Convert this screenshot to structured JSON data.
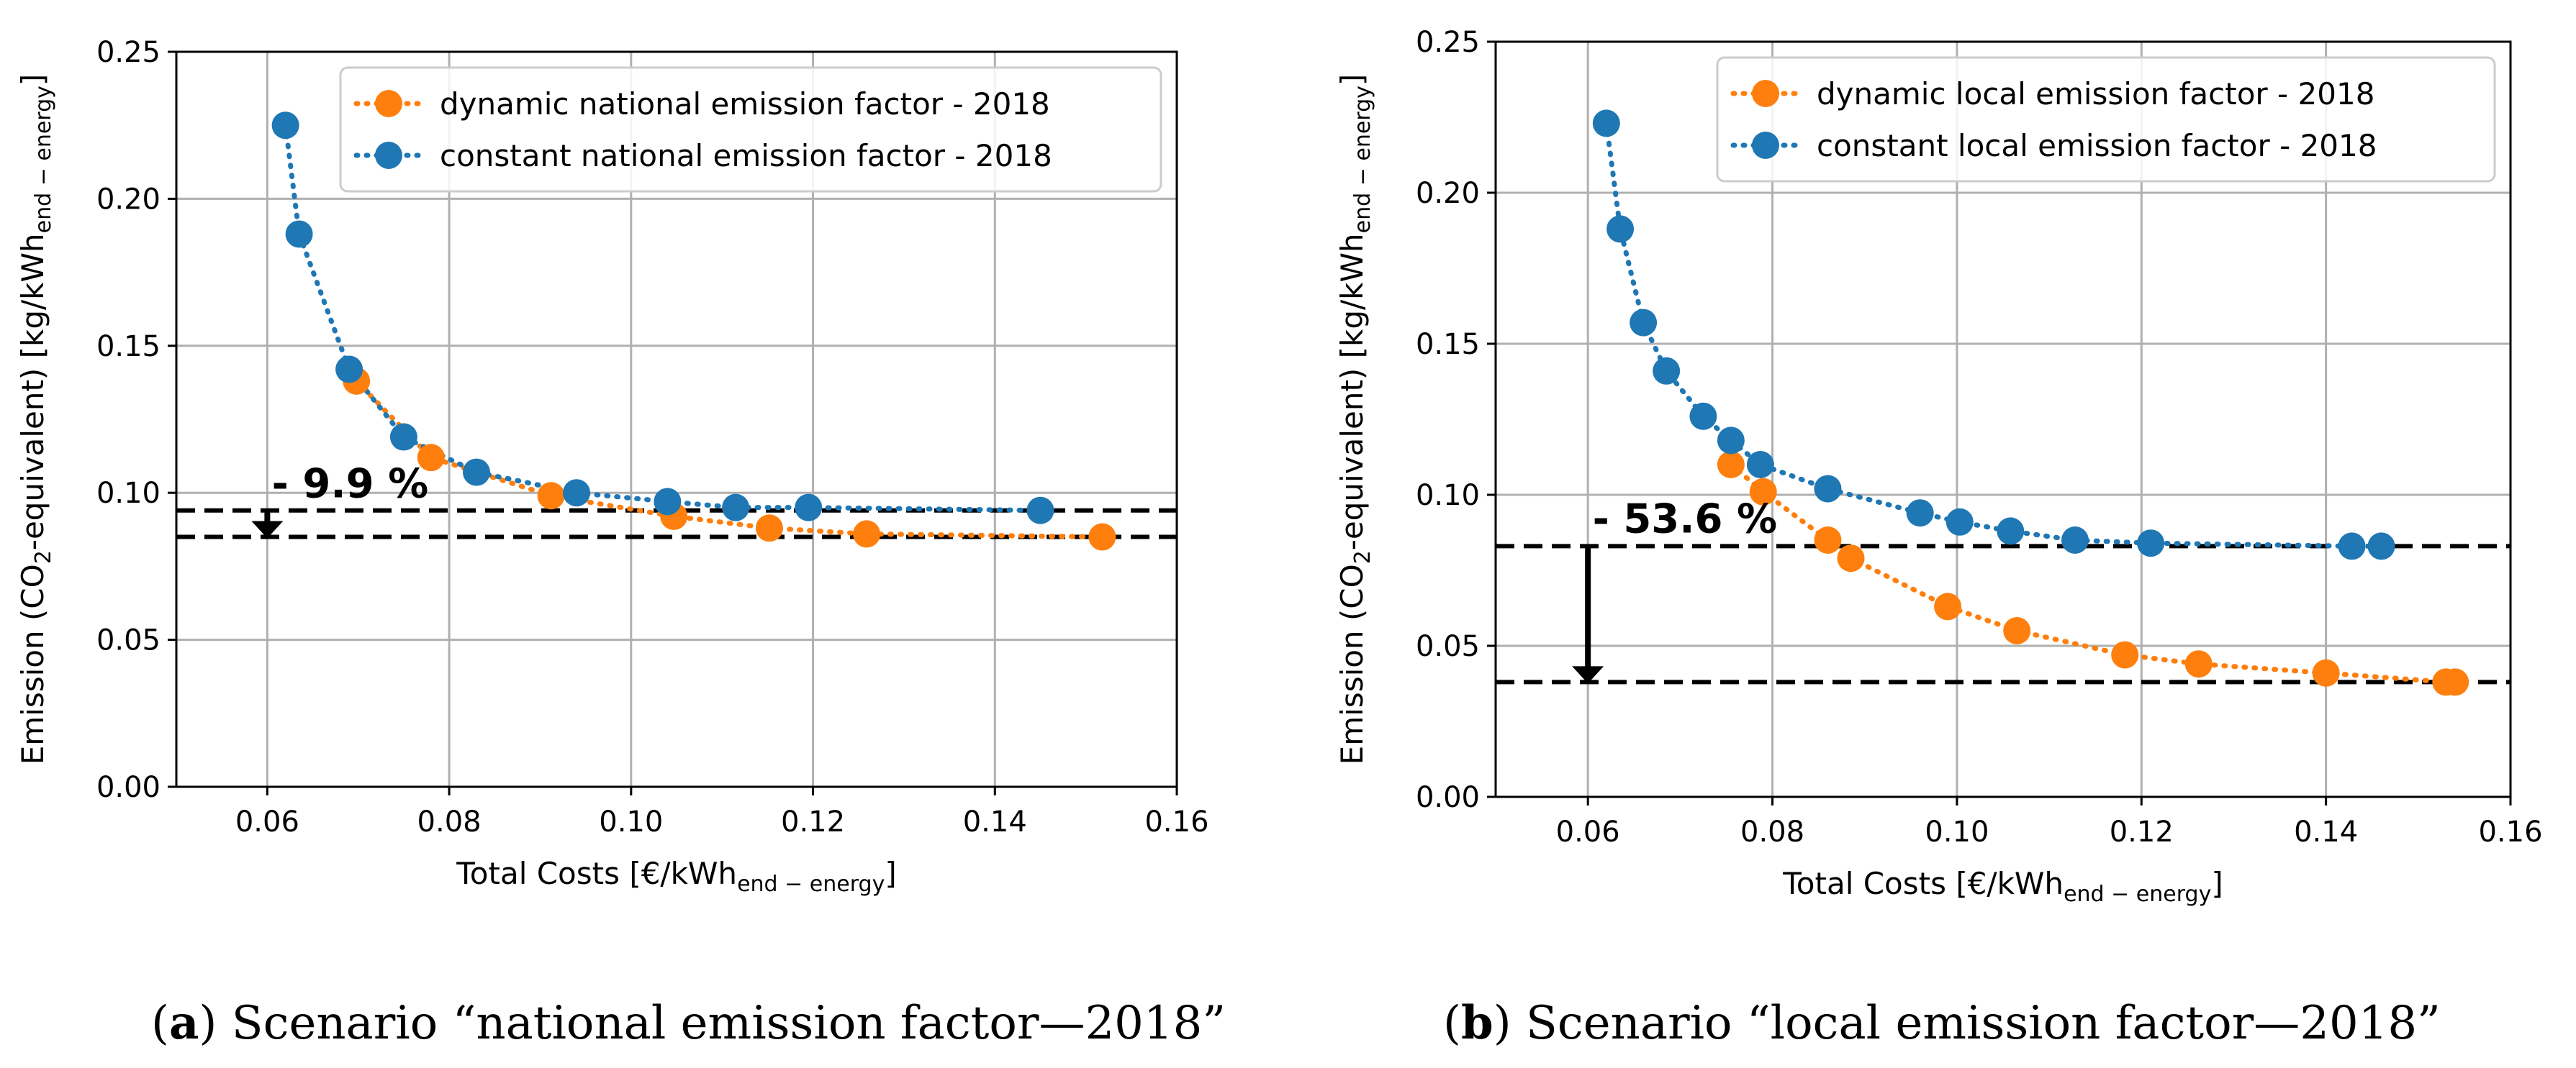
{
  "colors": {
    "dynamic": "#ff7f0e",
    "constant": "#1f77b4",
    "grid": "#b0b0b0",
    "axis": "#000000",
    "dashed": "#000000"
  },
  "captions": {
    "a_letter": "a",
    "a_text": " Scenario “national emission factor—2018”",
    "b_letter": "b",
    "b_text": " Scenario “local emission factor—2018”"
  },
  "chart_data": [
    {
      "id": "a",
      "type": "scatter",
      "xlabel_main": "Total Costs [€/kWh",
      "xlabel_sub": "end − energy",
      "xlabel_close": "]",
      "ylabel_pre": "Emission (CO",
      "ylabel_sub1": "2",
      "ylabel_mid": "-equivalent) [kg/kWh",
      "ylabel_sub2": "end − energy",
      "ylabel_close": "]",
      "xlim": [
        0.05,
        0.16
      ],
      "ylim": [
        0.0,
        0.25
      ],
      "xticks": [
        0.06,
        0.08,
        0.1,
        0.12,
        0.14,
        0.16
      ],
      "xtick_labels": [
        "0.06",
        "0.08",
        "0.10",
        "0.12",
        "0.14",
        "0.16"
      ],
      "yticks": [
        0.0,
        0.05,
        0.1,
        0.15,
        0.2,
        0.25
      ],
      "ytick_labels": [
        "0.00",
        "0.05",
        "0.10",
        "0.15",
        "0.20",
        "0.25"
      ],
      "grid": true,
      "legend_position": "top-right",
      "series": [
        {
          "name": "dynamic national emission factor - 2018",
          "color_key": "dynamic",
          "x": [
            0.0698,
            0.078,
            0.0912,
            0.1047,
            0.1152,
            0.1259,
            0.1518
          ],
          "y": [
            0.138,
            0.112,
            0.099,
            0.092,
            0.088,
            0.086,
            0.085
          ]
        },
        {
          "name": "constant national emission factor - 2018",
          "color_key": "constant",
          "x": [
            0.062,
            0.0635,
            0.069,
            0.075,
            0.083,
            0.094,
            0.104,
            0.1115,
            0.1195,
            0.145
          ],
          "y": [
            0.225,
            0.188,
            0.142,
            0.119,
            0.107,
            0.1,
            0.097,
            0.095,
            0.095,
            0.094
          ]
        }
      ],
      "hlines": [
        0.094,
        0.085
      ],
      "annotation": {
        "text": "- 9.9 %",
        "x": 0.0605,
        "y": 0.0985,
        "arrow_x": 0.06,
        "arrow_from": 0.094,
        "arrow_to": 0.085
      }
    },
    {
      "id": "b",
      "type": "scatter",
      "xlabel_main": "Total Costs [€/kWh",
      "xlabel_sub": "end − energy",
      "xlabel_close": "]",
      "ylabel_pre": "Emission (CO",
      "ylabel_sub1": "2",
      "ylabel_mid": "-equivalent) [kg/kWh",
      "ylabel_sub2": "end − energy",
      "ylabel_close": "]",
      "xlim": [
        0.05,
        0.16
      ],
      "ylim": [
        0.0,
        0.25
      ],
      "xticks": [
        0.06,
        0.08,
        0.1,
        0.12,
        0.14,
        0.16
      ],
      "xtick_labels": [
        "0.06",
        "0.08",
        "0.10",
        "0.12",
        "0.14",
        "0.16"
      ],
      "yticks": [
        0.0,
        0.05,
        0.1,
        0.15,
        0.2,
        0.25
      ],
      "ytick_labels": [
        "0.00",
        "0.05",
        "0.10",
        "0.15",
        "0.20",
        "0.25"
      ],
      "grid": true,
      "legend_position": "top-right",
      "series": [
        {
          "name": "dynamic local emission factor - 2018",
          "color_key": "dynamic",
          "x": [
            0.0755,
            0.079,
            0.086,
            0.0885,
            0.099,
            0.1065,
            0.1182,
            0.1262,
            0.14,
            0.153,
            0.154
          ],
          "y": [
            0.11,
            0.101,
            0.085,
            0.079,
            0.063,
            0.055,
            0.047,
            0.044,
            0.041,
            0.038,
            0.038
          ]
        },
        {
          "name": "constant local emission factor - 2018",
          "color_key": "constant",
          "x": [
            0.062,
            0.0635,
            0.066,
            0.0685,
            0.0725,
            0.0755,
            0.0787,
            0.086,
            0.096,
            0.1003,
            0.1058,
            0.1128,
            0.121,
            0.1428,
            0.146
          ],
          "y": [
            0.223,
            0.188,
            0.157,
            0.141,
            0.126,
            0.118,
            0.11,
            0.102,
            0.094,
            0.091,
            0.088,
            0.085,
            0.084,
            0.083,
            0.083
          ]
        }
      ],
      "hlines": [
        0.083,
        0.038
      ],
      "annotation": {
        "text": "- 53.6 %",
        "x": 0.0605,
        "y": 0.0875,
        "arrow_x": 0.06,
        "arrow_from": 0.083,
        "arrow_to": 0.038
      }
    }
  ]
}
